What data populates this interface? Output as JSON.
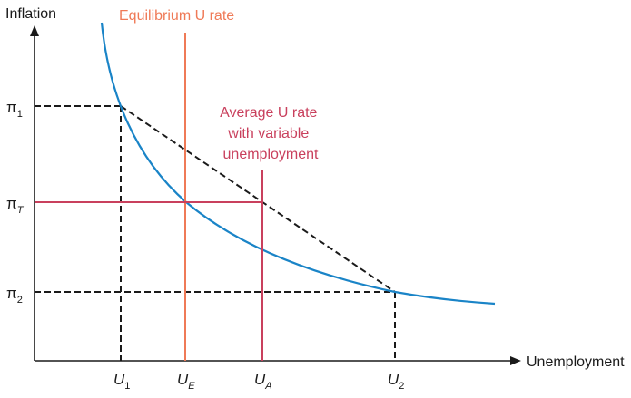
{
  "colors": {
    "curve": "#1a84c7",
    "equilibrium_line": "#ef7a57",
    "average_line": "#c9405d",
    "axes": "#1a1a1a",
    "dashed": "#1a1a1a"
  },
  "axes": {
    "y_title": "Inflation",
    "x_title": "Unemployment"
  },
  "labels": {
    "equilibrium": "Equilibrium U rate",
    "average_lines": [
      "Average U rate",
      "with variable",
      "unemployment"
    ]
  },
  "y_ticks": [
    {
      "main": "π",
      "sub": "1"
    },
    {
      "main": "π",
      "sub": "T"
    },
    {
      "main": "π",
      "sub": "2"
    }
  ],
  "x_ticks": [
    {
      "main": "U",
      "sub": "1"
    },
    {
      "main": "U",
      "sub": "E"
    },
    {
      "main": "U",
      "sub": "A"
    },
    {
      "main": "U",
      "sub": "2"
    }
  ],
  "icons": {
    "x_arrow": "right-arrow-icon",
    "y_arrow": "up-arrow-icon"
  }
}
